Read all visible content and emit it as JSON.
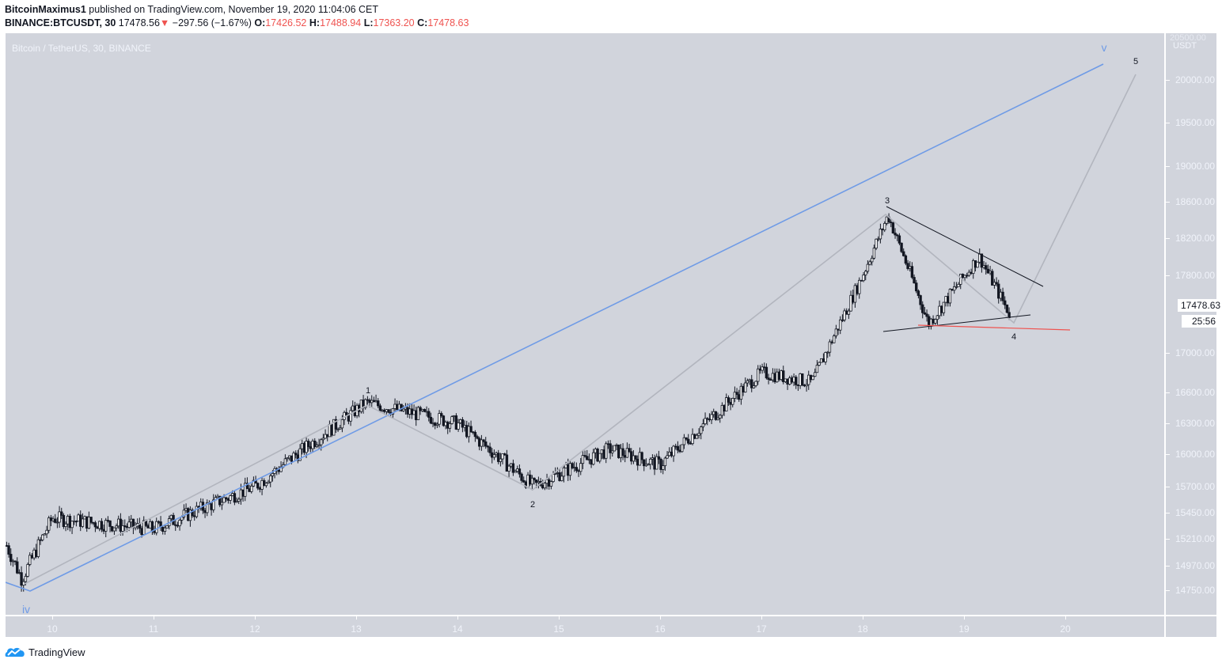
{
  "header": {
    "author": "BitcoinMaximus1",
    "published_text": " published on TradingView.com, November 19, 2020 11:04:06 CET",
    "symbol": "BINANCE:BTCUSDT, 30",
    "last": "17478.56",
    "change_arrow": "▼",
    "change": "−297.56 (−1.67%)",
    "o_label": "O:",
    "o": "17426.52",
    "h_label": "H:",
    "h": "17488.94",
    "l_label": "L:",
    "l": "17363.20",
    "c_label": "C:",
    "c": "17478.63"
  },
  "chart": {
    "symbol_title": "Bitcoin / TetherUS, 30, BINANCE",
    "currency_unit": "USDT",
    "top_partial_label": "20500.00",
    "current_price_tag": "17478.63",
    "bar_countdown": "25:56",
    "colors": {
      "background": "#d1d4dc",
      "candles": "#131722",
      "wave_degree_line": "#6f9be6",
      "wave_path": "#b2b5be",
      "trendline": "#131722",
      "support": "#ef5350",
      "down": "#ef5350"
    }
  },
  "chart_data": {
    "type": "candlestick",
    "title": "Bitcoin / TetherUS, 30, BINANCE",
    "xlabel": "",
    "ylabel": "USDT",
    "x_ticks": [
      "10",
      "11",
      "12",
      "13",
      "14",
      "15",
      "16",
      "17",
      "18",
      "19",
      "20"
    ],
    "y_ticks": [
      20000,
      19500,
      19000,
      18600,
      18200,
      17800,
      17000,
      16600,
      16300,
      16000,
      15700,
      15450,
      15210,
      14970,
      14750
    ],
    "ylim": [
      14550,
      20600
    ],
    "grid": false,
    "approx_closes_by_day": [
      {
        "x": 9.7,
        "price": 14850
      },
      {
        "x": 10.0,
        "price": 15400
      },
      {
        "x": 11.0,
        "price": 15300
      },
      {
        "x": 12.0,
        "price": 15700
      },
      {
        "x": 13.1,
        "price": 16500
      },
      {
        "x": 14.0,
        "price": 16300
      },
      {
        "x": 14.75,
        "price": 15700
      },
      {
        "x": 15.5,
        "price": 16050
      },
      {
        "x": 16.0,
        "price": 15900
      },
      {
        "x": 17.0,
        "price": 16800
      },
      {
        "x": 17.5,
        "price": 16700
      },
      {
        "x": 18.0,
        "price": 17800
      },
      {
        "x": 18.25,
        "price": 18450
      },
      {
        "x": 18.65,
        "price": 17300
      },
      {
        "x": 19.15,
        "price": 18000
      },
      {
        "x": 19.45,
        "price": 17400
      }
    ],
    "wave_labels": [
      {
        "label": "iv",
        "x": 9.7,
        "price": 14700,
        "color": "#6f9be6"
      },
      {
        "label": "1",
        "x": 13.1,
        "price": 16550
      },
      {
        "label": "2",
        "x": 14.75,
        "price": 15650
      },
      {
        "label": "3",
        "x": 18.25,
        "price": 18500
      },
      {
        "label": "4",
        "x": 19.5,
        "price": 17400
      },
      {
        "label": "5",
        "x": 20.7,
        "price": 20050
      },
      {
        "label": "v",
        "x": 20.4,
        "price": 20200,
        "color": "#6f9be6"
      }
    ],
    "annotations": [
      "Descending trendline from wave 3 high",
      "Ascending support line of triangle",
      "Red horizontal support ~17300"
    ]
  },
  "footer": {
    "brand": "TradingView"
  }
}
